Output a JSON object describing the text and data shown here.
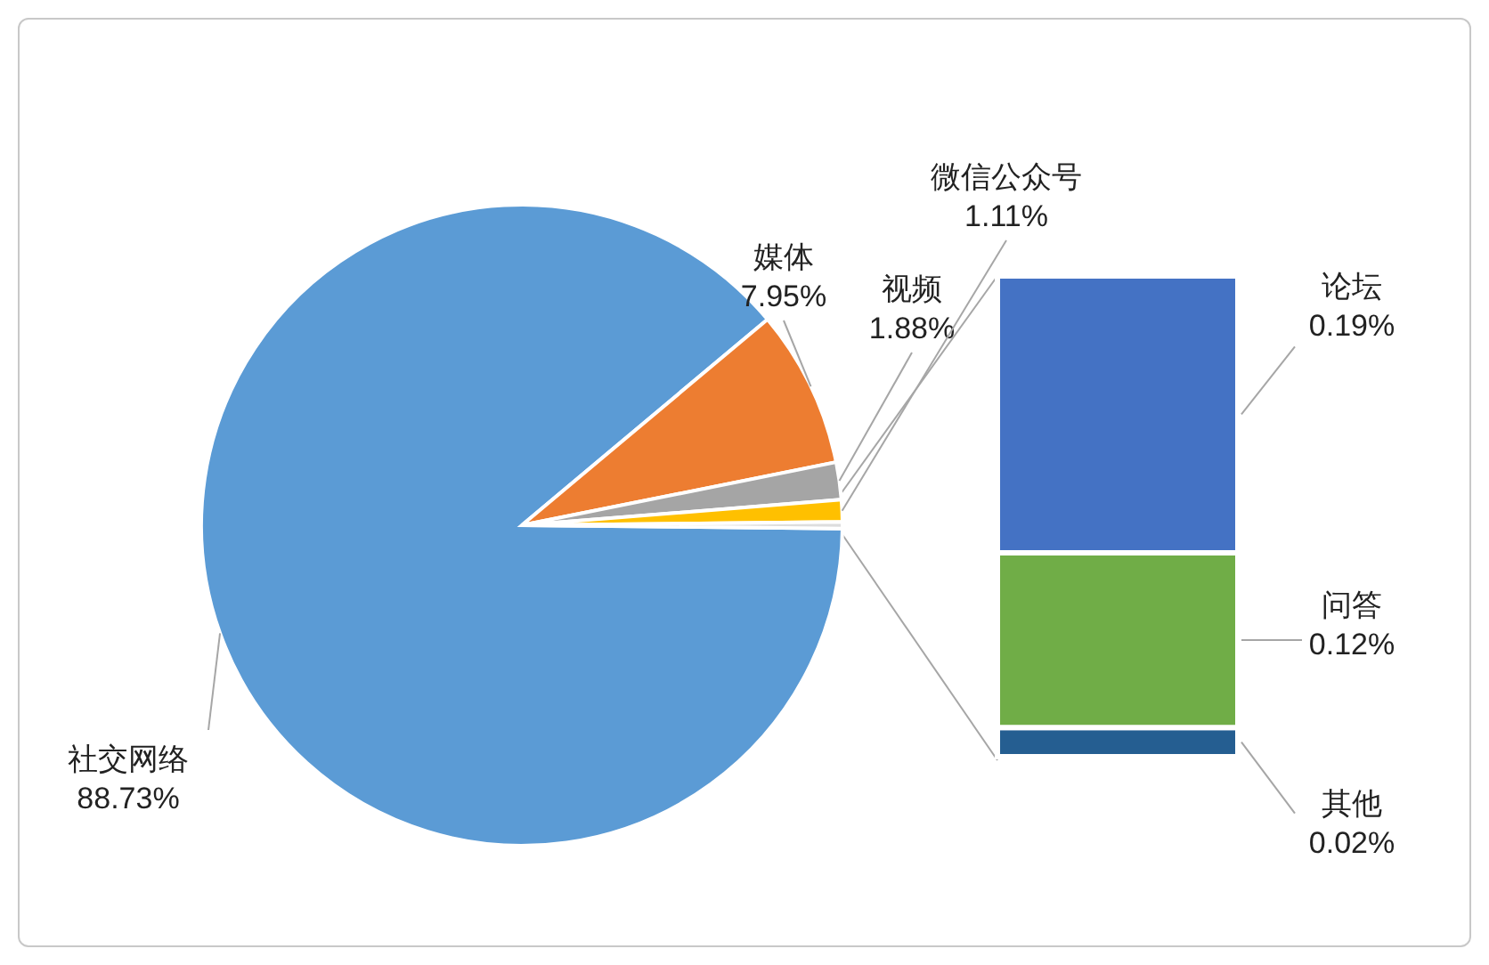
{
  "chart_data": [
    {
      "type": "pie",
      "categories": [
        "社交网络",
        "媒体",
        "视频",
        "微信公众号",
        null
      ],
      "values": [
        88.73,
        7.95,
        1.88,
        1.11,
        0.33
      ],
      "value_labels": [
        "88.73%",
        "7.95%",
        "1.88%",
        "1.11%",
        null
      ],
      "colors": [
        "#5b9bd5",
        "#ed7d31",
        "#a5a5a5",
        "#ffc000",
        "#dddddd"
      ],
      "legend": false
    },
    {
      "type": "bar",
      "stacked": true,
      "categories": [
        null
      ],
      "legend": false,
      "series": [
        {
          "name": "其他",
          "color": "#255e91",
          "values": [
            0.02
          ],
          "value_labels": [
            "0.02%"
          ]
        },
        {
          "name": "问答",
          "color": "#70ad47",
          "values": [
            0.12
          ],
          "value_labels": [
            "0.12%"
          ]
        },
        {
          "name": "论坛",
          "color": "#4472c4",
          "values": [
            0.19
          ],
          "value_labels": [
            "0.19%"
          ]
        }
      ]
    }
  ]
}
